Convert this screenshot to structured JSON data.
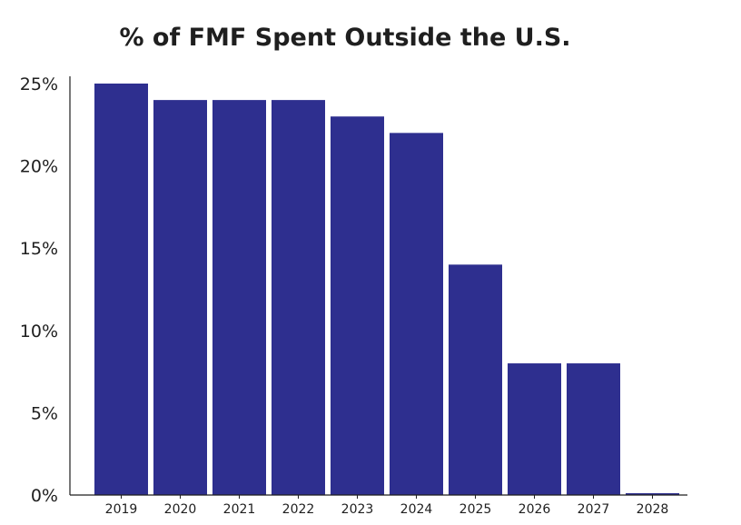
{
  "chart_data": {
    "type": "bar",
    "title": "% of FMF Spent Outside the U.S.",
    "xlabel": "",
    "ylabel": "",
    "categories": [
      "2019",
      "2020",
      "2021",
      "2022",
      "2023",
      "2024",
      "2025",
      "2026",
      "2027",
      "2028"
    ],
    "values": [
      25,
      24,
      24,
      24,
      23,
      22,
      14,
      8,
      8,
      0.1
    ],
    "ylim": [
      0,
      25
    ],
    "yticks": [
      0,
      5,
      10,
      15,
      20,
      25
    ],
    "ytick_labels": [
      "0%",
      "5%",
      "10%",
      "15%",
      "20%",
      "25%"
    ],
    "grid": false,
    "legend": "none",
    "bar_color": "#2e2f8f",
    "axis_color": "#1f1f1f"
  }
}
